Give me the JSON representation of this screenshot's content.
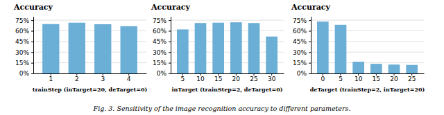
{
  "chart_data": [
    {
      "type": "bar",
      "title": "Accuracy",
      "x_label": "trainStep (inTarget=20, deTarget=0)",
      "categories": [
        1,
        2,
        3,
        4
      ],
      "values": [
        0.695,
        0.715,
        0.693,
        0.665
      ],
      "color": "#6baed6",
      "ylim": [
        0,
        0.8
      ],
      "yticks": [
        {
          "value": 0.0,
          "label": "0%"
        },
        {
          "value": 0.15,
          "label": "15%"
        },
        {
          "value": 0.3,
          "label": "30%"
        },
        {
          "value": 0.45,
          "label": "45%"
        },
        {
          "value": 0.6,
          "label": "60%"
        },
        {
          "value": 0.75,
          "label": "75%"
        }
      ],
      "grid": true
    },
    {
      "type": "bar",
      "title": "Accuracy",
      "x_label": "inTarget (trainStep=2, deTarget=0)",
      "categories": [
        5,
        10,
        15,
        20,
        25,
        30
      ],
      "values": [
        0.62,
        0.71,
        0.715,
        0.72,
        0.71,
        0.52
      ],
      "color": "#6baed6",
      "ylim": [
        0,
        0.8
      ],
      "yticks": [
        {
          "value": 0.0,
          "label": "0%"
        },
        {
          "value": 0.15,
          "label": "15%"
        },
        {
          "value": 0.3,
          "label": "30%"
        },
        {
          "value": 0.45,
          "label": "45%"
        },
        {
          "value": 0.6,
          "label": "60%"
        },
        {
          "value": 0.75,
          "label": "75%"
        }
      ],
      "grid": true
    },
    {
      "type": "bar",
      "title": "Accuracy",
      "x_label": "deTarget (trainStep=2, inTarget=20)",
      "categories": [
        0,
        5,
        10,
        15,
        20,
        25
      ],
      "values": [
        0.73,
        0.685,
        0.165,
        0.135,
        0.125,
        0.12
      ],
      "color": "#6baed6",
      "ylim": [
        0,
        0.8
      ],
      "yticks": [
        {
          "value": 0.0,
          "label": "0%"
        },
        {
          "value": 0.15,
          "label": "15%"
        },
        {
          "value": 0.3,
          "label": "30%"
        },
        {
          "value": 0.45,
          "label": "45%"
        },
        {
          "value": 0.6,
          "label": "60%"
        },
        {
          "value": 0.75,
          "label": "75%"
        }
      ],
      "grid": true
    }
  ],
  "caption": "Fig. 3.  Sensitivity of the image recognition accuracy to different parameters."
}
